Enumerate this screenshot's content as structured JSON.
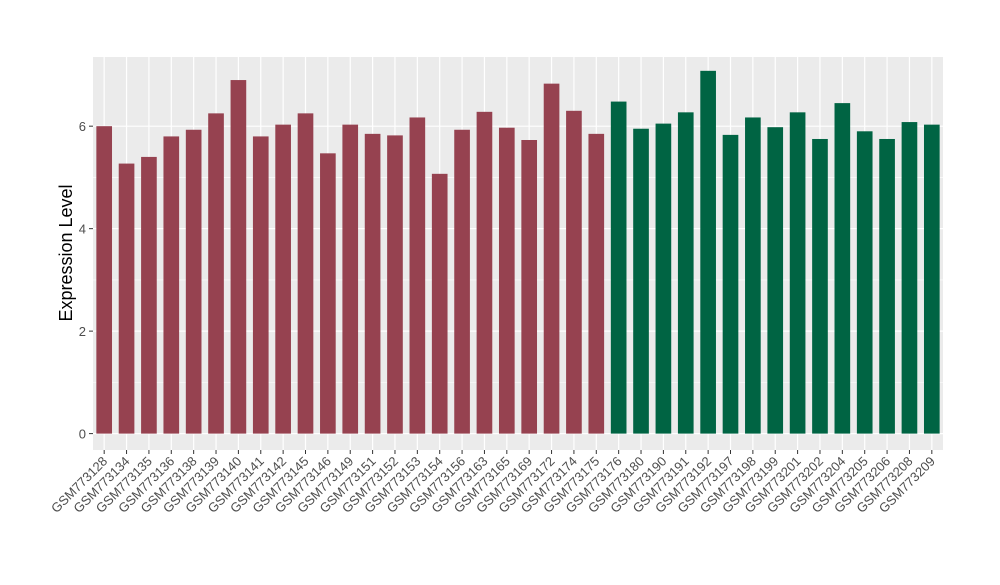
{
  "chart_data": {
    "type": "bar",
    "title": "",
    "xlabel": "",
    "ylabel": "Expression Level",
    "ylim": [
      -0.32,
      7.35
    ],
    "yticks": [
      0,
      2,
      4,
      6
    ],
    "grid": true,
    "legend": "none",
    "background_color": "#EBEBEB",
    "grid_color": "#FFFFFF",
    "group_colors": [
      "#964250",
      "#006443"
    ],
    "categories": [
      "GSM773128",
      "GSM773134",
      "GSM773135",
      "GSM773136",
      "GSM773138",
      "GSM773139",
      "GSM773140",
      "GSM773141",
      "GSM773142",
      "GSM773145",
      "GSM773146",
      "GSM773149",
      "GSM773151",
      "GSM773152",
      "GSM773153",
      "GSM773154",
      "GSM773156",
      "GSM773163",
      "GSM773165",
      "GSM773169",
      "GSM773172",
      "GSM773174",
      "GSM773175",
      "GSM773176",
      "GSM773180",
      "GSM773190",
      "GSM773191",
      "GSM773192",
      "GSM773197",
      "GSM773198",
      "GSM773199",
      "GSM773201",
      "GSM773202",
      "GSM773204",
      "GSM773205",
      "GSM773206",
      "GSM773208",
      "GSM773209"
    ],
    "values": [
      6.0,
      5.27,
      5.4,
      5.8,
      5.93,
      6.25,
      6.9,
      5.8,
      6.03,
      6.25,
      5.47,
      6.03,
      5.85,
      5.82,
      6.17,
      5.07,
      5.93,
      6.28,
      5.97,
      5.73,
      6.83,
      6.3,
      5.85,
      6.48,
      5.95,
      6.05,
      6.27,
      7.08,
      5.83,
      6.17,
      5.98,
      6.27,
      5.75,
      6.45,
      5.9,
      5.75,
      6.08,
      6.03
    ],
    "group": [
      0,
      0,
      0,
      0,
      0,
      0,
      0,
      0,
      0,
      0,
      0,
      0,
      0,
      0,
      0,
      0,
      0,
      0,
      0,
      0,
      0,
      0,
      0,
      1,
      1,
      1,
      1,
      1,
      1,
      1,
      1,
      1,
      1,
      1,
      1,
      1,
      1,
      1
    ]
  }
}
